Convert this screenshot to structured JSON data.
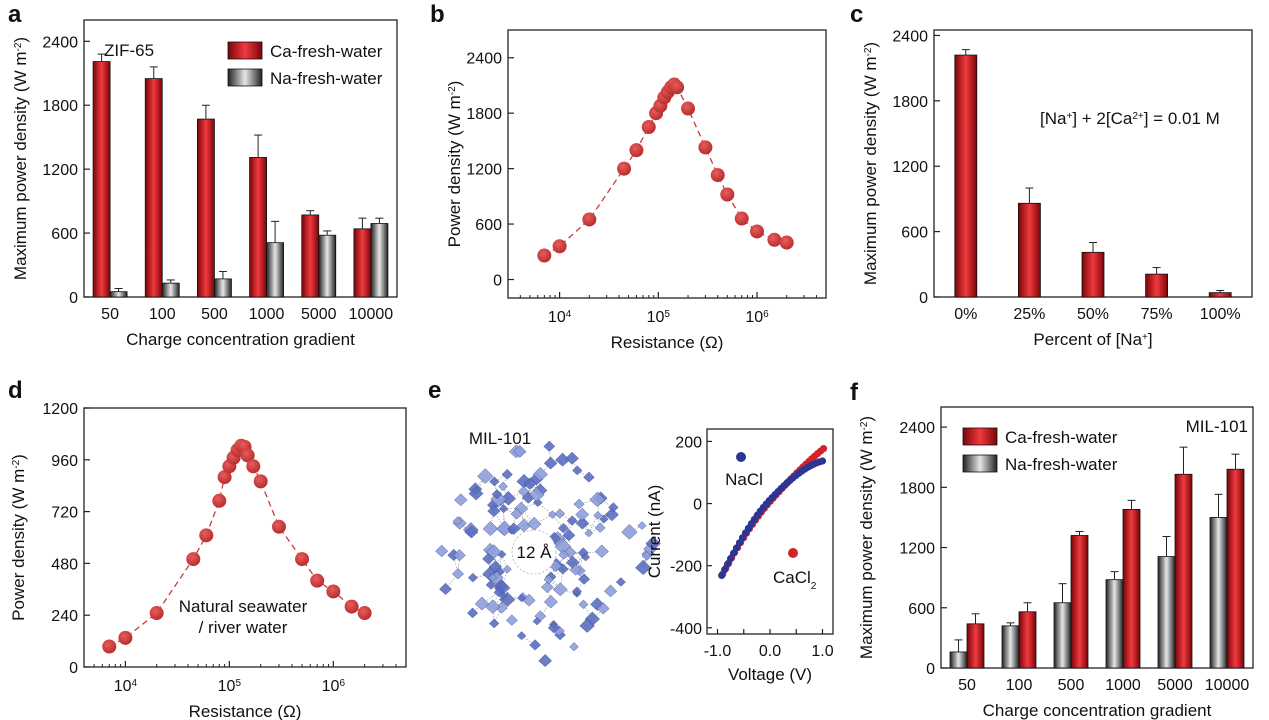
{
  "panels": {
    "a": {
      "letter": "a",
      "chart_data": {
        "type": "bar",
        "label": "ZIF-65",
        "categories": [
          "50",
          "100",
          "500",
          "1000",
          "5000",
          "10000"
        ],
        "xlabel": "Charge concentration gradient",
        "ylabel": "Maximum power density (W m",
        "ylabel_sup": "-2",
        "ylabel_end": ")",
        "ylim": [
          0,
          2600
        ],
        "yticks": [
          0,
          600,
          1200,
          1800,
          2400
        ],
        "legend": "top-right",
        "series": [
          {
            "name": "Ca-fresh-water",
            "color": "#c0161b",
            "values": [
              2210,
              2050,
              1670,
              1310,
              770,
              640
            ],
            "errors": [
              70,
              110,
              130,
              210,
              40,
              100
            ]
          },
          {
            "name": "Na-fresh-water",
            "color": "#6f6f6f",
            "values": [
              50,
              130,
              170,
              510,
              580,
              690
            ],
            "errors": [
              30,
              30,
              70,
              200,
              40,
              50
            ]
          }
        ]
      }
    },
    "b": {
      "letter": "b",
      "chart_data": {
        "type": "scatter",
        "xscale": "log",
        "xlabel": "Resistance (Ω)",
        "ylabel": "Power density (W m",
        "ylabel_sup": "-2",
        "ylabel_end": ")",
        "xlim": [
          3000,
          5000000
        ],
        "ylim": [
          -200,
          2700
        ],
        "yticks": [
          0,
          600,
          1200,
          1800,
          2400
        ],
        "xticks": [
          10000,
          100000,
          1000000
        ],
        "xtick_labels": [
          {
            "base": "10",
            "exp": "4"
          },
          {
            "base": "10",
            "exp": "5"
          },
          {
            "base": "10",
            "exp": "6"
          }
        ],
        "color": "#c83a3a",
        "x": [
          7000,
          10000,
          20000,
          45000,
          60000,
          80000,
          95000,
          105000,
          115000,
          125000,
          135000,
          145000,
          155000,
          200000,
          300000,
          400000,
          500000,
          700000,
          1000000,
          1500000,
          2000000
        ],
        "y": [
          260,
          360,
          650,
          1200,
          1400,
          1650,
          1800,
          1880,
          1970,
          2030,
          2080,
          2110,
          2080,
          1850,
          1430,
          1130,
          920,
          660,
          520,
          430,
          400
        ]
      }
    },
    "c": {
      "letter": "c",
      "chart_data": {
        "type": "bar",
        "categories": [
          "0%",
          "25%",
          "50%",
          "75%",
          "100%"
        ],
        "xlabel": "Percent of [Na",
        "xlabel_sup": "+",
        "xlabel_end": "]",
        "ylabel": "Maximum power density (W m",
        "ylabel_sup": "-2",
        "ylabel_end": ")",
        "ylim": [
          0,
          2450
        ],
        "yticks": [
          0,
          600,
          1200,
          1800,
          2400
        ],
        "annotation_parts": [
          {
            "t": "[Na",
            "s": ""
          },
          {
            "t": "+",
            "s": "sup"
          },
          {
            "t": "] + 2[Ca",
            "s": ""
          },
          {
            "t": "2+",
            "s": "sup"
          },
          {
            "t": "] = 0.01 M",
            "s": ""
          }
        ],
        "color": "#c0161b",
        "values": [
          2220,
          860,
          410,
          210,
          40
        ],
        "errors": [
          50,
          140,
          90,
          60,
          20
        ]
      }
    },
    "d": {
      "letter": "d",
      "chart_data": {
        "type": "scatter",
        "xscale": "log",
        "xlabel": "Resistance (Ω)",
        "ylabel": "Power density (W m",
        "ylabel_sup": "-2",
        "ylabel_end": ")",
        "xlim": [
          4000,
          5000000
        ],
        "ylim": [
          0,
          1200
        ],
        "yticks": [
          0,
          240,
          480,
          720,
          960,
          1200
        ],
        "xticks": [
          10000,
          100000,
          1000000
        ],
        "xtick_labels": [
          {
            "base": "10",
            "exp": "4"
          },
          {
            "base": "10",
            "exp": "5"
          },
          {
            "base": "10",
            "exp": "6"
          }
        ],
        "annotation_lines": [
          "Natural seawater",
          "/ river water"
        ],
        "color": "#c83a3a",
        "x": [
          7000,
          10000,
          20000,
          45000,
          60000,
          80000,
          90000,
          100000,
          110000,
          120000,
          130000,
          140000,
          150000,
          170000,
          200000,
          300000,
          500000,
          700000,
          1000000,
          1500000,
          2000000
        ],
        "y": [
          95,
          135,
          250,
          500,
          610,
          770,
          880,
          930,
          970,
          1005,
          1025,
          1020,
          980,
          930,
          860,
          650,
          500,
          400,
          350,
          280,
          250
        ]
      }
    },
    "e": {
      "letter": "e",
      "structure": {
        "title": "MIL-101",
        "pore_label": "12 Å"
      },
      "chart_data": {
        "type": "scatter",
        "xlabel": "Voltage (V)",
        "ylabel": "Current (nA)",
        "xlim": [
          -1.2,
          1.2
        ],
        "ylim": [
          -420,
          240
        ],
        "xticks": [
          -1.0,
          -0.5,
          0.0,
          0.5,
          1.0
        ],
        "xtick_labels": [
          "-1.0",
          "",
          "0.0",
          "",
          "1.0"
        ],
        "yticks": [
          -400,
          -200,
          0,
          200
        ],
        "series": [
          {
            "name": "NaCl",
            "color": "#2c3591"
          },
          {
            "name": "CaCl",
            "name_sub": "2",
            "color": "#d2232a"
          }
        ]
      }
    },
    "f": {
      "letter": "f",
      "chart_data": {
        "type": "bar",
        "label": "MIL-101",
        "categories": [
          "50",
          "100",
          "500",
          "1000",
          "5000",
          "10000"
        ],
        "xlabel": "Charge concentration gradient",
        "ylabel": "Maximum power density (W m",
        "ylabel_sup": "-2",
        "ylabel_end": ")",
        "ylim": [
          0,
          2600
        ],
        "yticks": [
          0,
          600,
          1200,
          1800,
          2400
        ],
        "legend": "top-left",
        "series": [
          {
            "name": "Ca-fresh-water",
            "color": "#c0161b",
            "values": [
              440,
              560,
              1320,
              1580,
              1930,
              1980
            ],
            "errors": [
              100,
              90,
              40,
              90,
              270,
              150
            ]
          },
          {
            "name": "Na-fresh-water",
            "color": "#6f6f6f",
            "values": [
              160,
              420,
              650,
              880,
              1110,
              1500
            ],
            "errors": [
              120,
              30,
              190,
              80,
              200,
              230
            ]
          }
        ]
      }
    }
  }
}
